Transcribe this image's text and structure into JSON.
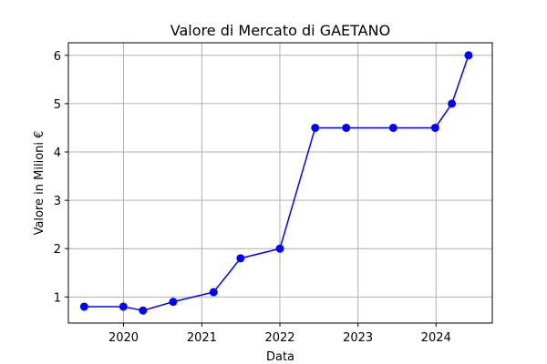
{
  "chart_data": {
    "type": "line",
    "title": "Valore di Mercato di GAETANO",
    "xlabel": "Data",
    "ylabel": "Valore in Milioni €",
    "x_ticks": [
      "2020",
      "2021",
      "2022",
      "2023",
      "2024"
    ],
    "y_ticks": [
      "1",
      "2",
      "3",
      "4",
      "5",
      "6"
    ],
    "xlim": [
      "2019-04-18",
      "2024-09-20"
    ],
    "ylim": [
      0.46,
      6.26
    ],
    "grid": true,
    "series": [
      {
        "color": "#0000ff",
        "marker": "circle",
        "points": [
          {
            "x": "2019-07-01",
            "y": 0.8
          },
          {
            "x": "2019-12-31",
            "y": 0.8
          },
          {
            "x": "2020-04-01",
            "y": 0.72
          },
          {
            "x": "2020-08-20",
            "y": 0.9
          },
          {
            "x": "2021-02-25",
            "y": 1.1
          },
          {
            "x": "2021-07-01",
            "y": 1.8
          },
          {
            "x": "2022-01-01",
            "y": 2.0
          },
          {
            "x": "2022-06-15",
            "y": 4.5
          },
          {
            "x": "2022-11-07",
            "y": 4.5
          },
          {
            "x": "2023-06-15",
            "y": 4.5
          },
          {
            "x": "2023-12-28",
            "y": 4.5
          },
          {
            "x": "2024-03-15",
            "y": 5.0
          },
          {
            "x": "2024-06-01",
            "y": 6.0
          }
        ]
      }
    ]
  }
}
